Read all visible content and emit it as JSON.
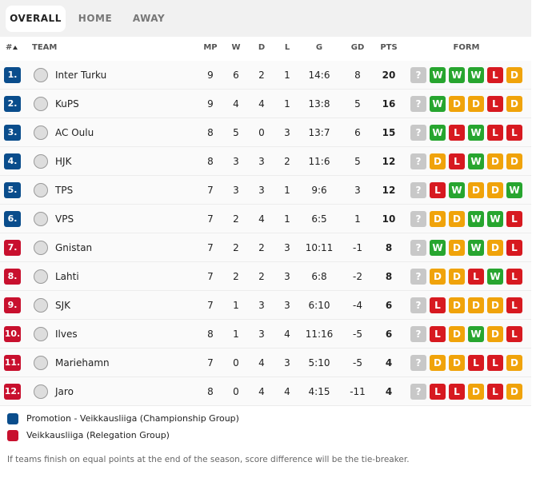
{
  "tabs": [
    "OVERALL",
    "HOME",
    "AWAY"
  ],
  "active_tab": 0,
  "header": {
    "rank": "#",
    "team": "TEAM",
    "mp": "MP",
    "w": "W",
    "d": "D",
    "l": "L",
    "g": "G",
    "gd": "GD",
    "pts": "PTS",
    "form": "FORM"
  },
  "form_colors": {
    "?": "#c8c8c8",
    "W": "#27a52f",
    "D": "#f0a30a",
    "L": "#d71920"
  },
  "rows": [
    {
      "rank": "1.",
      "badge_color": "#0a4d8c",
      "team": "Inter Turku",
      "mp": 9,
      "w": 6,
      "d": 2,
      "l": 1,
      "g": "14:6",
      "gd": 8,
      "pts": 20,
      "form": [
        "?",
        "W",
        "W",
        "W",
        "L",
        "D"
      ]
    },
    {
      "rank": "2.",
      "badge_color": "#0a4d8c",
      "team": "KuPS",
      "mp": 9,
      "w": 4,
      "d": 4,
      "l": 1,
      "g": "13:8",
      "gd": 5,
      "pts": 16,
      "form": [
        "?",
        "W",
        "D",
        "D",
        "L",
        "D"
      ]
    },
    {
      "rank": "3.",
      "badge_color": "#0a4d8c",
      "team": "AC Oulu",
      "mp": 8,
      "w": 5,
      "d": 0,
      "l": 3,
      "g": "13:7",
      "gd": 6,
      "pts": 15,
      "form": [
        "?",
        "W",
        "L",
        "W",
        "L",
        "L"
      ]
    },
    {
      "rank": "4.",
      "badge_color": "#0a4d8c",
      "team": "HJK",
      "mp": 8,
      "w": 3,
      "d": 3,
      "l": 2,
      "g": "11:6",
      "gd": 5,
      "pts": 12,
      "form": [
        "?",
        "D",
        "L",
        "W",
        "D",
        "D"
      ]
    },
    {
      "rank": "5.",
      "badge_color": "#0a4d8c",
      "team": "TPS",
      "mp": 7,
      "w": 3,
      "d": 3,
      "l": 1,
      "g": "9:6",
      "gd": 3,
      "pts": 12,
      "form": [
        "?",
        "L",
        "W",
        "D",
        "D",
        "W"
      ]
    },
    {
      "rank": "6.",
      "badge_color": "#0a4d8c",
      "team": "VPS",
      "mp": 7,
      "w": 2,
      "d": 4,
      "l": 1,
      "g": "6:5",
      "gd": 1,
      "pts": 10,
      "form": [
        "?",
        "D",
        "D",
        "W",
        "W",
        "L"
      ]
    },
    {
      "rank": "7.",
      "badge_color": "#c8102e",
      "team": "Gnistan",
      "mp": 7,
      "w": 2,
      "d": 2,
      "l": 3,
      "g": "10:11",
      "gd": -1,
      "pts": 8,
      "form": [
        "?",
        "W",
        "D",
        "W",
        "D",
        "L"
      ]
    },
    {
      "rank": "8.",
      "badge_color": "#c8102e",
      "team": "Lahti",
      "mp": 7,
      "w": 2,
      "d": 2,
      "l": 3,
      "g": "6:8",
      "gd": -2,
      "pts": 8,
      "form": [
        "?",
        "D",
        "D",
        "L",
        "W",
        "L"
      ]
    },
    {
      "rank": "9.",
      "badge_color": "#c8102e",
      "team": "SJK",
      "mp": 7,
      "w": 1,
      "d": 3,
      "l": 3,
      "g": "6:10",
      "gd": -4,
      "pts": 6,
      "form": [
        "?",
        "L",
        "D",
        "D",
        "D",
        "L"
      ]
    },
    {
      "rank": "10.",
      "badge_color": "#c8102e",
      "team": "Ilves",
      "mp": 8,
      "w": 1,
      "d": 3,
      "l": 4,
      "g": "11:16",
      "gd": -5,
      "pts": 6,
      "form": [
        "?",
        "L",
        "D",
        "W",
        "D",
        "L"
      ]
    },
    {
      "rank": "11.",
      "badge_color": "#c8102e",
      "team": "Mariehamn",
      "mp": 7,
      "w": 0,
      "d": 4,
      "l": 3,
      "g": "5:10",
      "gd": -5,
      "pts": 4,
      "form": [
        "?",
        "D",
        "D",
        "L",
        "L",
        "D"
      ]
    },
    {
      "rank": "12.",
      "badge_color": "#c8102e",
      "team": "Jaro",
      "mp": 8,
      "w": 0,
      "d": 4,
      "l": 4,
      "g": "4:15",
      "gd": -11,
      "pts": 4,
      "form": [
        "?",
        "L",
        "L",
        "D",
        "L",
        "D"
      ]
    }
  ],
  "legend": [
    {
      "color": "#0a4d8c",
      "label": "Promotion - Veikkausliiga (Championship Group)"
    },
    {
      "color": "#c8102e",
      "label": "Veikkausliiga (Relegation Group)"
    }
  ],
  "footer": "If teams finish on equal points at the end of the season, score difference will be the tie-breaker."
}
